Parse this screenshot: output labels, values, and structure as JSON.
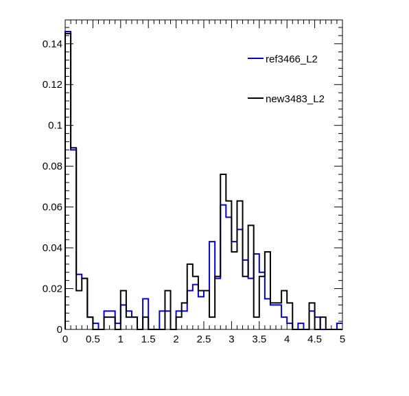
{
  "chart_data": {
    "type": "histogram",
    "title": "",
    "xlabel": "",
    "ylabel": "",
    "xlim": [
      0,
      5
    ],
    "ylim": [
      0,
      0.1517
    ],
    "grid": false,
    "legend_position": "top-right",
    "bin_edges_start": 0,
    "bin_width": 0.1,
    "x_ticks": [
      "0",
      "0.5",
      "1",
      "1.5",
      "2",
      "2.5",
      "3",
      "3.5",
      "4",
      "4.5",
      "5"
    ],
    "y_ticks": [
      "0",
      "0.02",
      "0.04",
      "0.06",
      "0.08",
      "0.1",
      "0.12",
      "0.14"
    ],
    "y_tick_values": [
      0,
      0.02,
      0.04,
      0.06,
      0.08,
      0.1,
      0.12,
      0.14
    ],
    "series": [
      {
        "name": "ref3466_L2",
        "color": "#0000cc",
        "values": [
          0.146,
          0.088,
          0.027,
          0.025,
          0.006,
          0.003,
          0.0,
          0.009,
          0.009,
          0.003,
          0.012,
          0.009,
          0.006,
          0.0,
          0.015,
          0.0,
          0.0,
          0.009,
          0.009,
          0.0,
          0.009,
          0.009,
          0.019,
          0.022,
          0.016,
          0.019,
          0.043,
          0.025,
          0.061,
          0.055,
          0.043,
          0.049,
          0.034,
          0.025,
          0.037,
          0.028,
          0.015,
          0.012,
          0.012,
          0.006,
          0.003,
          0.0,
          0.003,
          0.0,
          0.009,
          0.006,
          0.0,
          0.0,
          0.0,
          0.003
        ]
      },
      {
        "name": "new3483_L2",
        "color": "#000000",
        "values": [
          0.145,
          0.089,
          0.019,
          0.025,
          0.006,
          0.0,
          0.0,
          0.006,
          0.006,
          0.0,
          0.019,
          0.006,
          0.006,
          0.0,
          0.006,
          0.0,
          0.0,
          0.0,
          0.019,
          0.0,
          0.006,
          0.013,
          0.032,
          0.026,
          0.019,
          0.019,
          0.006,
          0.026,
          0.076,
          0.063,
          0.038,
          0.063,
          0.026,
          0.051,
          0.006,
          0.026,
          0.038,
          0.013,
          0.013,
          0.019,
          0.013,
          0.0,
          0.0,
          0.0,
          0.013,
          0.0,
          0.006,
          0.0,
          0.0,
          0.0
        ]
      }
    ]
  },
  "legend": {
    "entries": [
      "ref3466_L2",
      "new3483_L2"
    ]
  }
}
